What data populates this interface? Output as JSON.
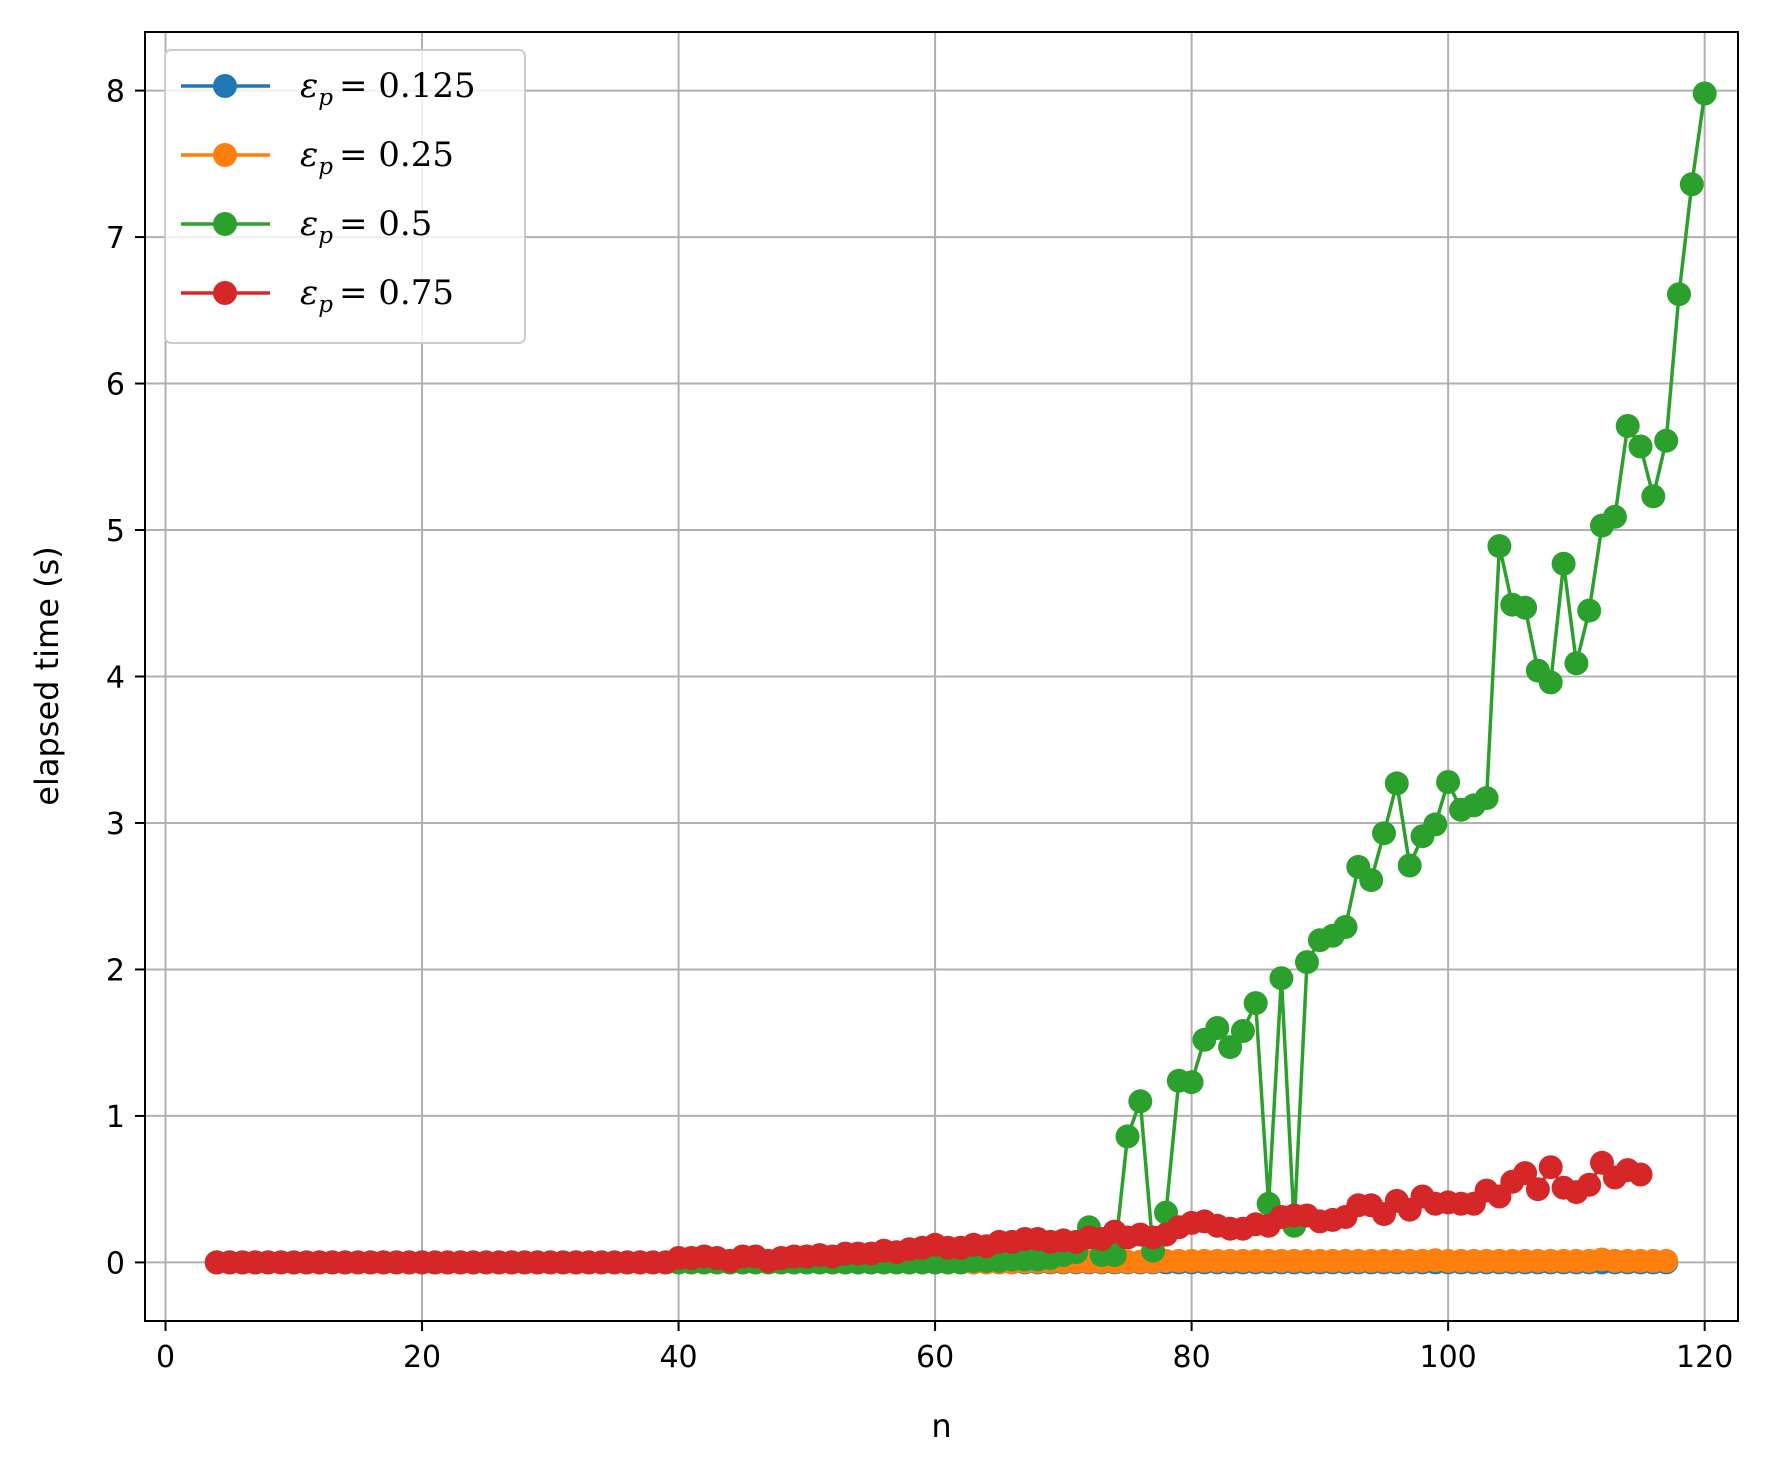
{
  "chart_data": {
    "type": "line",
    "xlabel": "n",
    "ylabel": "elapsed time (s)",
    "xlim": [
      -1.6,
      122.6
    ],
    "ylim": [
      -0.4,
      8.4
    ],
    "xticks": [
      0,
      20,
      40,
      60,
      80,
      100,
      120
    ],
    "yticks": [
      0,
      1,
      2,
      3,
      4,
      5,
      6,
      7,
      8
    ],
    "grid": true,
    "legend_position": "top-left",
    "series": [
      {
        "name": "ε_p = 0.125",
        "legend_symbol": "ε",
        "legend_subscript": "p",
        "legend_value": "= 0.125",
        "color": "#1f77b4",
        "x_start": 4,
        "y": [
          0,
          0,
          0,
          0,
          0,
          0,
          0,
          0,
          0,
          0,
          0,
          0,
          0,
          0,
          0,
          0,
          0,
          0,
          0,
          0,
          0,
          0,
          0,
          0,
          0,
          0,
          0,
          0,
          0,
          0,
          0,
          0,
          0,
          0,
          0,
          0,
          0,
          0,
          0,
          0,
          0,
          0,
          0,
          0,
          0,
          0,
          0,
          0,
          0,
          0,
          0,
          0,
          0,
          0,
          0,
          0,
          0,
          0,
          0,
          0,
          0,
          0,
          0,
          0,
          0,
          0,
          0,
          0,
          0,
          0,
          0,
          0,
          0,
          0,
          0,
          0,
          0,
          0,
          0,
          0,
          0,
          0,
          0,
          0,
          0,
          0,
          0,
          0,
          0,
          0,
          0,
          0,
          0,
          0,
          0,
          0,
          0,
          0,
          0,
          0,
          0,
          0,
          0,
          0,
          0,
          0,
          0,
          0,
          0,
          0,
          0,
          0,
          0,
          0
        ]
      },
      {
        "name": "ε_p = 0.25",
        "legend_symbol": "ε",
        "legend_subscript": "p",
        "legend_value": "= 0.25",
        "color": "#ff7f0e",
        "x_start": 4,
        "y": [
          0,
          0,
          0,
          0,
          0,
          0,
          0,
          0,
          0,
          0,
          0,
          0,
          0,
          0,
          0,
          0,
          0,
          0,
          0,
          0,
          0,
          0,
          0,
          0,
          0,
          0,
          0,
          0,
          0,
          0,
          0,
          0,
          0,
          0,
          0,
          0,
          0,
          0,
          0,
          0,
          0,
          0,
          0,
          0,
          0,
          0,
          0,
          0,
          0,
          0,
          0,
          0,
          0,
          0,
          0,
          0,
          0,
          0,
          0,
          0,
          0,
          0,
          0,
          0.005,
          0.005,
          0.005,
          0.005,
          0.005,
          0.005,
          0.005,
          0.005,
          0.005,
          0.005,
          0.005,
          0.01,
          0.01,
          0.01,
          0.01,
          0.01,
          0.01,
          0.01,
          0.01,
          0.01,
          0.01,
          0.01,
          0.01,
          0.01,
          0.01,
          0.01,
          0.01,
          0.01,
          0.01,
          0.01,
          0.01,
          0.01,
          0.015,
          0.01,
          0.01,
          0.01,
          0.01,
          0.01,
          0.01,
          0.01,
          0.01,
          0.01,
          0.01,
          0.01,
          0.01,
          0.02,
          0.01,
          0.01,
          0.01,
          0.01,
          0.01
        ]
      },
      {
        "name": "ε_p = 0.5",
        "legend_symbol": "ε",
        "legend_subscript": "p",
        "legend_value": "= 0.5",
        "color": "#2ca02c",
        "x_start": 4,
        "y": [
          0,
          0,
          0,
          0,
          0,
          0,
          0,
          0,
          0,
          0,
          0,
          0,
          0,
          0,
          0,
          0,
          0,
          0,
          0,
          0,
          0,
          0,
          0,
          0,
          0,
          0,
          0,
          0,
          0,
          0,
          0,
          0,
          0,
          0,
          0,
          0,
          0,
          0,
          0,
          0,
          0,
          0,
          0,
          0,
          0,
          0,
          0,
          0,
          0,
          0,
          0,
          0,
          0,
          0,
          0,
          0,
          0,
          0,
          0,
          0.01,
          0.01,
          0.01,
          0.02,
          0.02,
          0.02,
          0.03,
          0.05,
          0.07,
          0.24,
          0.05,
          0.05,
          0.86,
          1.1,
          0.08,
          0.34,
          1.24,
          1.23,
          1.52,
          1.6,
          1.47,
          1.58,
          1.77,
          0.4,
          1.94,
          0.25,
          2.05,
          2.2,
          2.23,
          2.29,
          2.7,
          2.61,
          2.93,
          3.27,
          2.71,
          2.91,
          2.99,
          3.28,
          3.09,
          3.12,
          3.17,
          4.89,
          4.49,
          4.47,
          4.04,
          3.96,
          4.77,
          4.09,
          4.45,
          5.03,
          5.09,
          5.71,
          5.57,
          5.23,
          5.61,
          6.61,
          7.36,
          7.98
        ]
      },
      {
        "name": "ε_p = 0.75",
        "legend_symbol": "ε",
        "legend_subscript": "p",
        "legend_value": "= 0.75",
        "color": "#d62728",
        "x_start": 4,
        "y": [
          0,
          0,
          0,
          0,
          0,
          0,
          0,
          0,
          0,
          0,
          0,
          0,
          0,
          0,
          0,
          0,
          0,
          0,
          0,
          0,
          0,
          0,
          0,
          0,
          0,
          0,
          0,
          0,
          0,
          0,
          0,
          0,
          0,
          0,
          0,
          0,
          0.03,
          0.03,
          0.04,
          0.03,
          0.01,
          0.04,
          0.04,
          0.01,
          0.03,
          0.04,
          0.04,
          0.05,
          0.04,
          0.06,
          0.06,
          0.06,
          0.08,
          0.07,
          0.09,
          0.1,
          0.12,
          0.1,
          0.1,
          0.12,
          0.11,
          0.14,
          0.14,
          0.16,
          0.16,
          0.14,
          0.15,
          0.14,
          0.17,
          0.16,
          0.21,
          0.17,
          0.19,
          0.17,
          0.19,
          0.24,
          0.27,
          0.28,
          0.25,
          0.23,
          0.23,
          0.26,
          0.25,
          0.31,
          0.32,
          0.32,
          0.28,
          0.29,
          0.31,
          0.39,
          0.39,
          0.33,
          0.42,
          0.36,
          0.45,
          0.4,
          0.41,
          0.4,
          0.4,
          0.49,
          0.45,
          0.55,
          0.61,
          0.5,
          0.65,
          0.51,
          0.48,
          0.53,
          0.68,
          0.58,
          0.63,
          0.6
        ]
      }
    ]
  }
}
